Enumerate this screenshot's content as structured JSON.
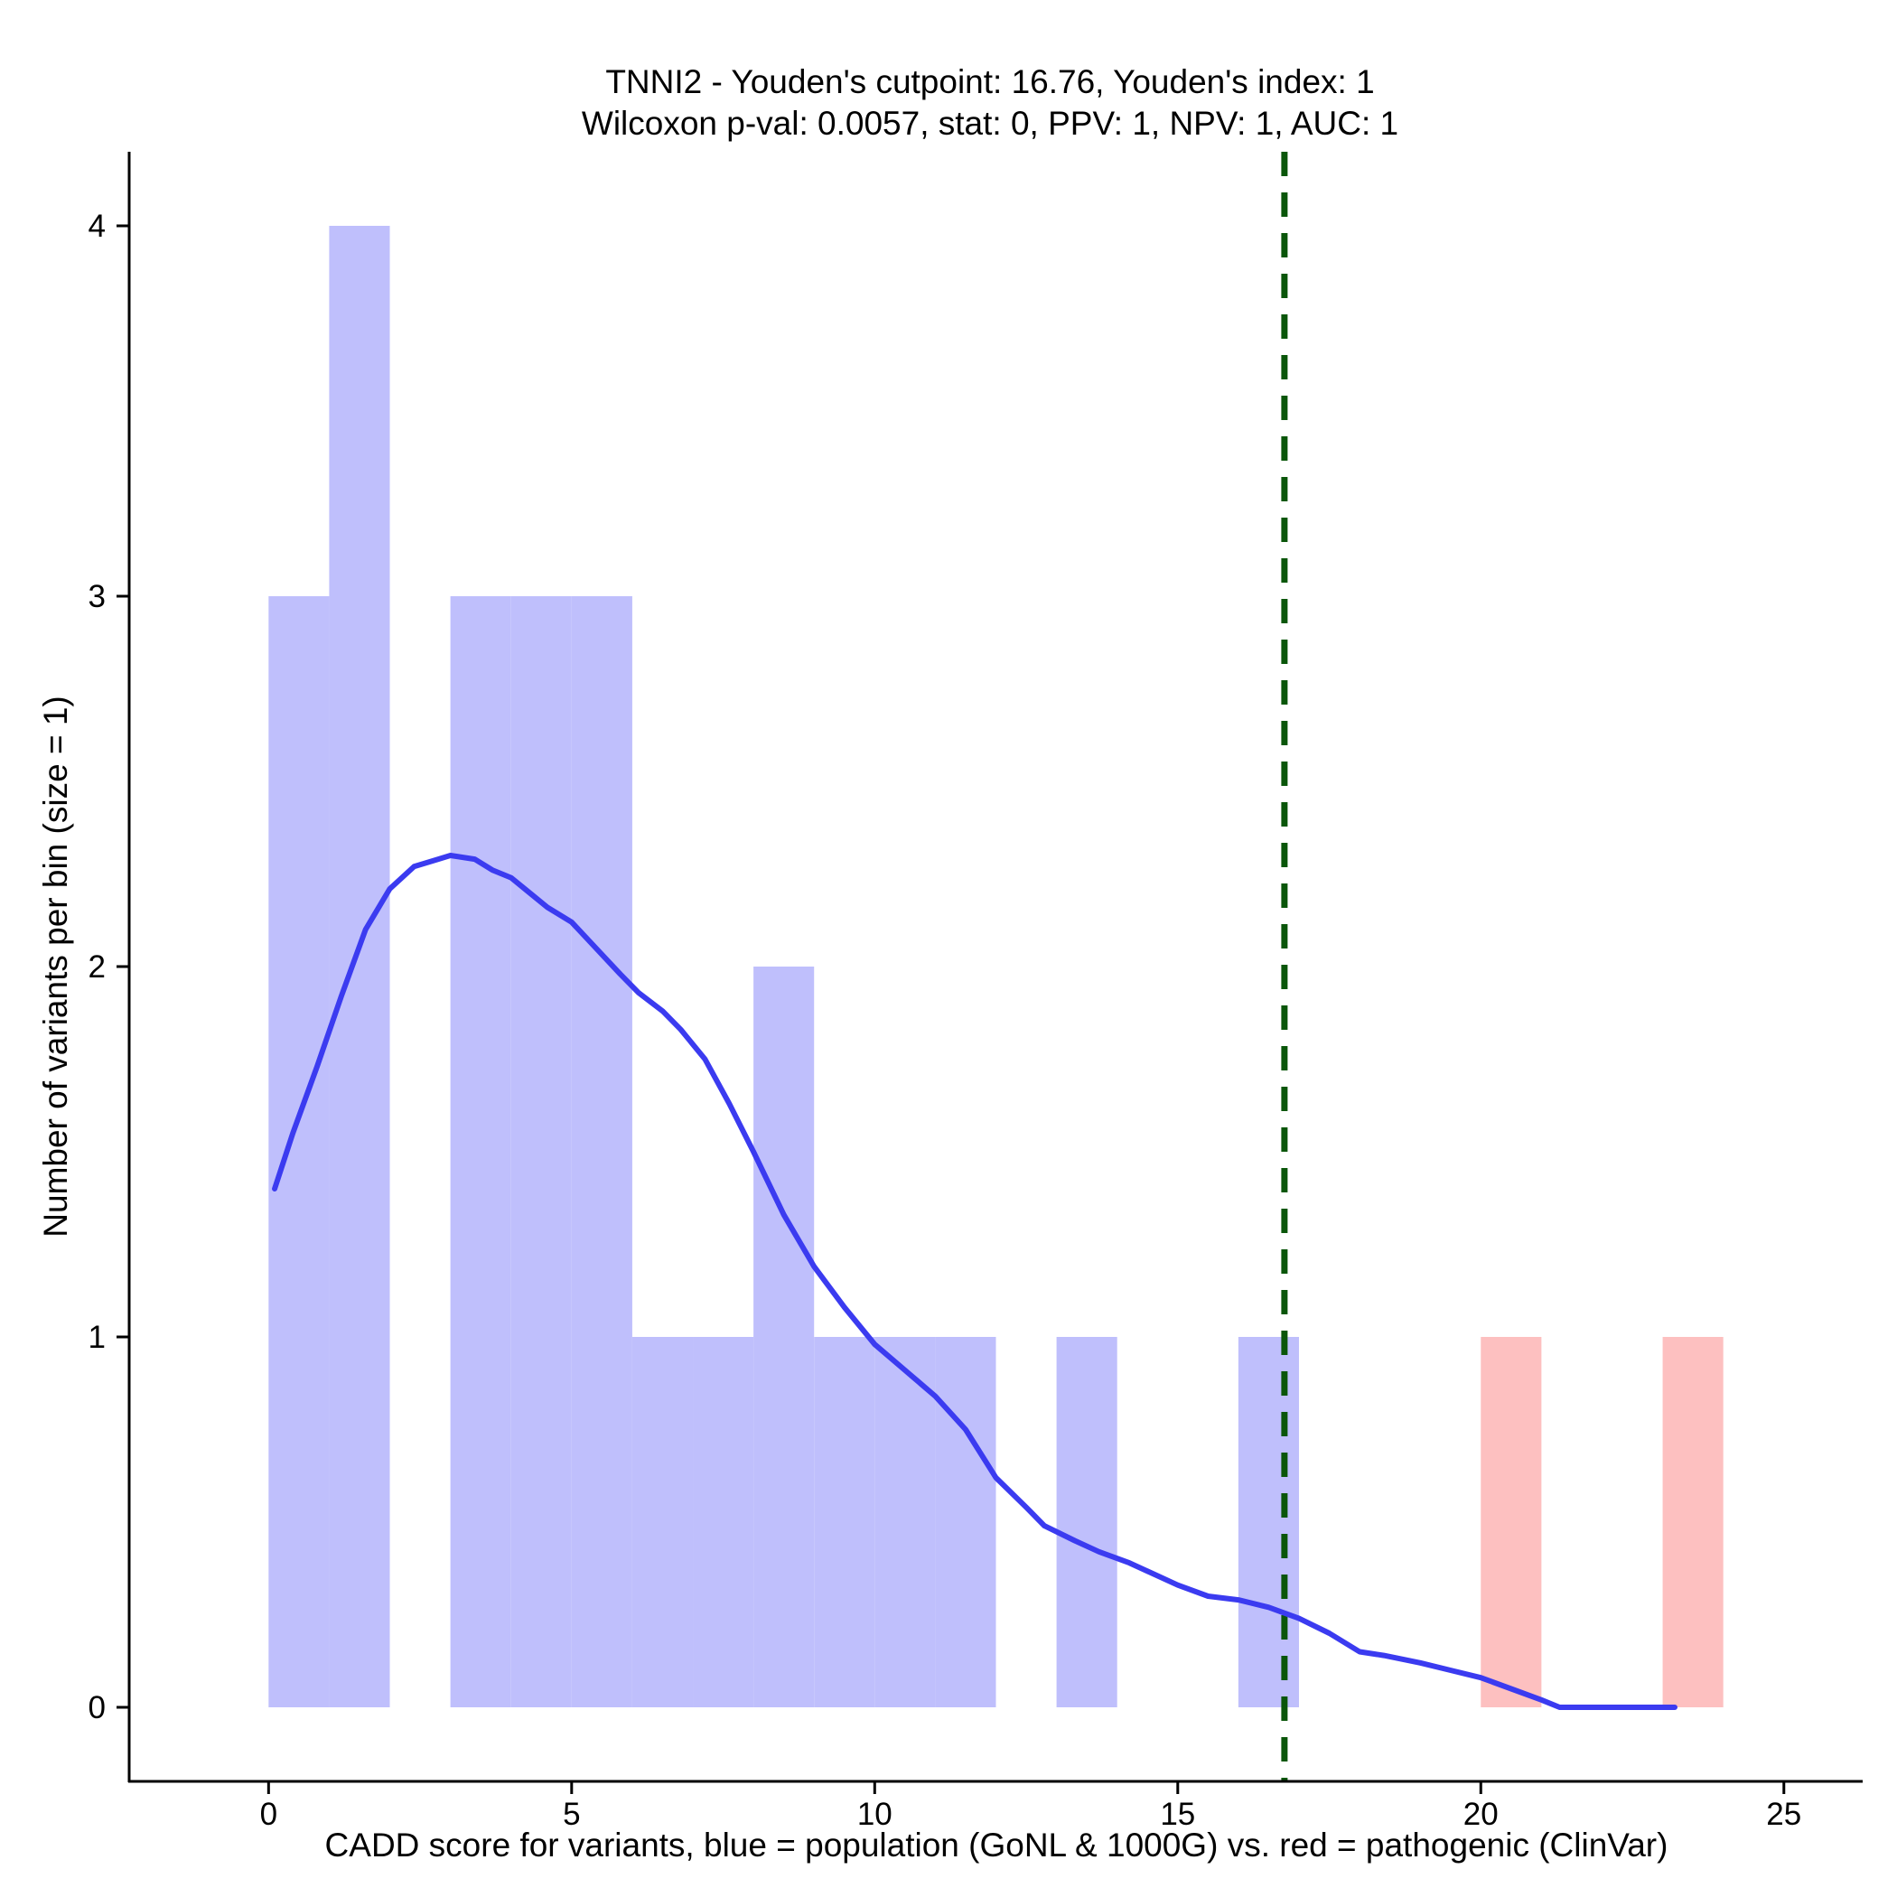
{
  "chart_data": {
    "type": "bar",
    "title_line1": "TNNI2 - Youden's cutpoint: 16.76, Youden's index: 1",
    "title_line2": "Wilcoxon p-val: 0.0057, stat: 0, PPV: 1, NPV: 1, AUC: 1",
    "xlabel": "CADD score for variants, blue = population (GoNL & 1000G) vs. red = pathogenic (ClinVar)",
    "ylabel": "Number of variants per bin (size = 1)",
    "xlim": [
      -2.3,
      26.3
    ],
    "ylim": [
      -0.2,
      4.2
    ],
    "xticks": [
      0,
      5,
      10,
      15,
      20,
      25
    ],
    "yticks": [
      0,
      1,
      2,
      3,
      4
    ],
    "grid": false,
    "bin_width": 1,
    "series": [
      {
        "bins": [
          {
            "x0": 0,
            "x1": 1,
            "count": 3
          },
          {
            "x0": 1,
            "x1": 2,
            "count": 4
          },
          {
            "x0": 3,
            "x1": 4,
            "count": 3
          },
          {
            "x0": 4,
            "x1": 5,
            "count": 3
          },
          {
            "x0": 5,
            "x1": 6,
            "count": 3
          },
          {
            "x0": 6,
            "x1": 7,
            "count": 1
          },
          {
            "x0": 7,
            "x1": 8,
            "count": 1
          },
          {
            "x0": 8,
            "x1": 9,
            "count": 2
          },
          {
            "x0": 9,
            "x1": 10,
            "count": 1
          },
          {
            "x0": 10,
            "x1": 11,
            "count": 1
          },
          {
            "x0": 11,
            "x1": 12,
            "count": 1
          },
          {
            "x0": 13,
            "x1": 14,
            "count": 1
          },
          {
            "x0": 16,
            "x1": 17,
            "count": 1
          }
        ],
        "color": "#bfbffc"
      },
      {
        "bins": [
          {
            "x0": 20,
            "x1": 21,
            "count": 1
          },
          {
            "x0": 23,
            "x1": 24,
            "count": 1
          }
        ],
        "color": "#fdc0c0"
      }
    ],
    "density_curve": {
      "color": "#3b3bf0",
      "x": [
        0.1,
        0.4,
        0.8,
        1.2,
        1.6,
        2.0,
        2.4,
        2.8,
        3.0,
        3.4,
        3.7,
        4.0,
        4.3,
        4.6,
        5.0,
        5.4,
        5.8,
        6.1,
        6.5,
        6.8,
        7.2,
        7.6,
        8.0,
        8.5,
        9.0,
        9.5,
        10.0,
        10.5,
        11.0,
        11.5,
        12.0,
        12.5,
        12.8,
        13.3,
        13.7,
        14.2,
        14.6,
        15.0,
        15.5,
        16.0,
        16.5,
        17.0,
        17.5,
        18.0,
        18.4,
        19.0,
        19.5,
        20.0,
        20.5,
        21.0,
        21.3,
        21.8,
        22.4,
        23.0,
        23.2
      ],
      "y": [
        1.4,
        1.55,
        1.73,
        1.92,
        2.1,
        2.21,
        2.27,
        2.29,
        2.3,
        2.29,
        2.26,
        2.24,
        2.2,
        2.16,
        2.12,
        2.05,
        1.98,
        1.93,
        1.88,
        1.83,
        1.75,
        1.63,
        1.5,
        1.33,
        1.19,
        1.08,
        0.98,
        0.91,
        0.84,
        0.75,
        0.62,
        0.54,
        0.49,
        0.45,
        0.42,
        0.39,
        0.36,
        0.33,
        0.3,
        0.29,
        0.27,
        0.24,
        0.2,
        0.15,
        0.14,
        0.12,
        0.1,
        0.08,
        0.05,
        0.02,
        0.0,
        0.0,
        0.0,
        0.0,
        0.0
      ]
    },
    "cutpoint": {
      "value": 16.76,
      "color": "#0a560a"
    }
  }
}
